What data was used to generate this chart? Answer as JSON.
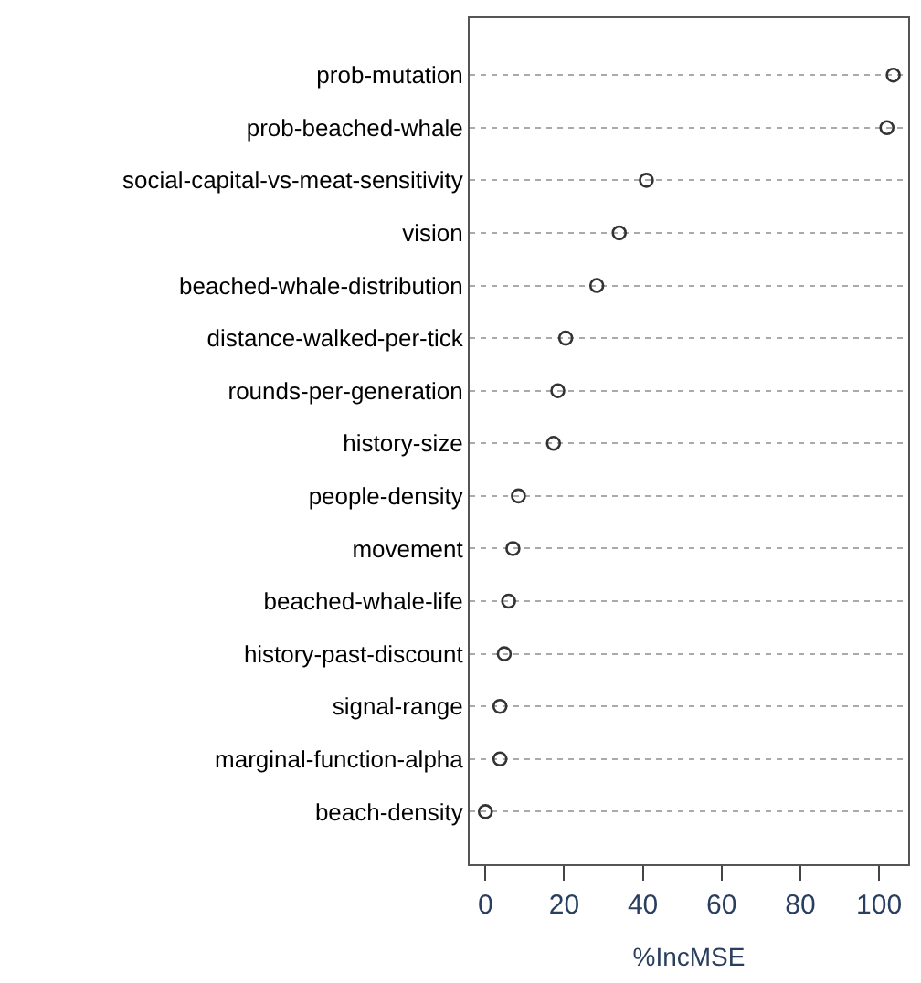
{
  "chart_data": {
    "type": "scatter",
    "orientation": "horizontal",
    "xlabel": "%IncMSE",
    "categories": [
      "prob-mutation",
      "prob-beached-whale",
      "social-capital-vs-meat-sensitivity",
      "vision",
      "beached-whale-distribution",
      "distance-walked-per-tick",
      "rounds-per-generation",
      "history-size",
      "people-density",
      "movement",
      "beached-whale-life",
      "history-past-discount",
      "signal-range",
      "marginal-function-alpha",
      "beach-density"
    ],
    "values": [
      103.6,
      102.0,
      40.9,
      34.0,
      28.3,
      20.4,
      18.4,
      17.3,
      8.4,
      7.0,
      5.9,
      4.8,
      3.7,
      3.7,
      0
    ],
    "color": "#333333",
    "marker": "circle",
    "grid": "y",
    "xlim": [
      -4,
      107.4
    ],
    "xticks": [
      0,
      20,
      40,
      60,
      80,
      100
    ]
  }
}
